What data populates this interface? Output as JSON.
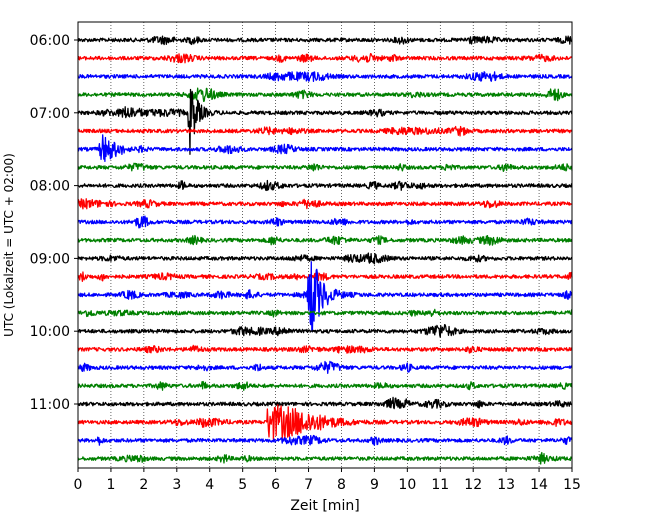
{
  "chart_data": {
    "type": "line",
    "title": "",
    "xlabel": "Zeit  [min]",
    "ylabel": "UTC (Lokalzeit = UTC + 02:00)",
    "xlim": [
      0,
      15
    ],
    "x_ticks": [
      "0",
      "1",
      "2",
      "3",
      "4",
      "5",
      "6",
      "7",
      "8",
      "9",
      "10",
      "11",
      "12",
      "13",
      "14",
      "15"
    ],
    "y_tick_labels": [
      "06:00",
      "07:00",
      "08:00",
      "09:00",
      "10:00",
      "11:00"
    ],
    "grid": "vertical dotted lines at each minute",
    "line_minutes": 15,
    "colors": [
      "#000000",
      "#ff0000",
      "#0000ff",
      "#008000"
    ],
    "traces": [
      {
        "start": "06:00",
        "color": "#000000"
      },
      {
        "start": "06:15",
        "color": "#ff0000"
      },
      {
        "start": "06:30",
        "color": "#0000ff"
      },
      {
        "start": "06:45",
        "color": "#008000"
      },
      {
        "start": "07:00",
        "color": "#000000"
      },
      {
        "start": "07:15",
        "color": "#ff0000"
      },
      {
        "start": "07:30",
        "color": "#0000ff"
      },
      {
        "start": "07:45",
        "color": "#008000"
      },
      {
        "start": "08:00",
        "color": "#000000"
      },
      {
        "start": "08:15",
        "color": "#ff0000"
      },
      {
        "start": "08:30",
        "color": "#0000ff"
      },
      {
        "start": "08:45",
        "color": "#008000"
      },
      {
        "start": "09:00",
        "color": "#000000"
      },
      {
        "start": "09:15",
        "color": "#ff0000"
      },
      {
        "start": "09:30",
        "color": "#0000ff"
      },
      {
        "start": "09:45",
        "color": "#008000"
      },
      {
        "start": "10:00",
        "color": "#000000"
      },
      {
        "start": "10:15",
        "color": "#ff0000"
      },
      {
        "start": "10:30",
        "color": "#0000ff"
      },
      {
        "start": "10:45",
        "color": "#008000"
      },
      {
        "start": "11:00",
        "color": "#000000"
      },
      {
        "start": "11:15",
        "color": "#ff0000"
      },
      {
        "start": "11:30",
        "color": "#0000ff"
      },
      {
        "start": "11:45",
        "color": "#008000"
      }
    ],
    "events": [
      {
        "trace": "07:00",
        "minute": 3.4,
        "amplitude": "large",
        "duration_min": 0.6
      },
      {
        "trace": "07:30",
        "minute": 0.7,
        "amplitude": "medium",
        "duration_min": 0.7
      },
      {
        "trace": "09:15",
        "minute": 0.1,
        "amplitude": "small",
        "duration_min": 0.3
      },
      {
        "trace": "09:30",
        "minute": 7.0,
        "amplitude": "very large",
        "duration_min": 1.0
      },
      {
        "trace": "11:15",
        "minute": 5.8,
        "amplitude": "medium",
        "duration_min": 3.5
      }
    ]
  }
}
